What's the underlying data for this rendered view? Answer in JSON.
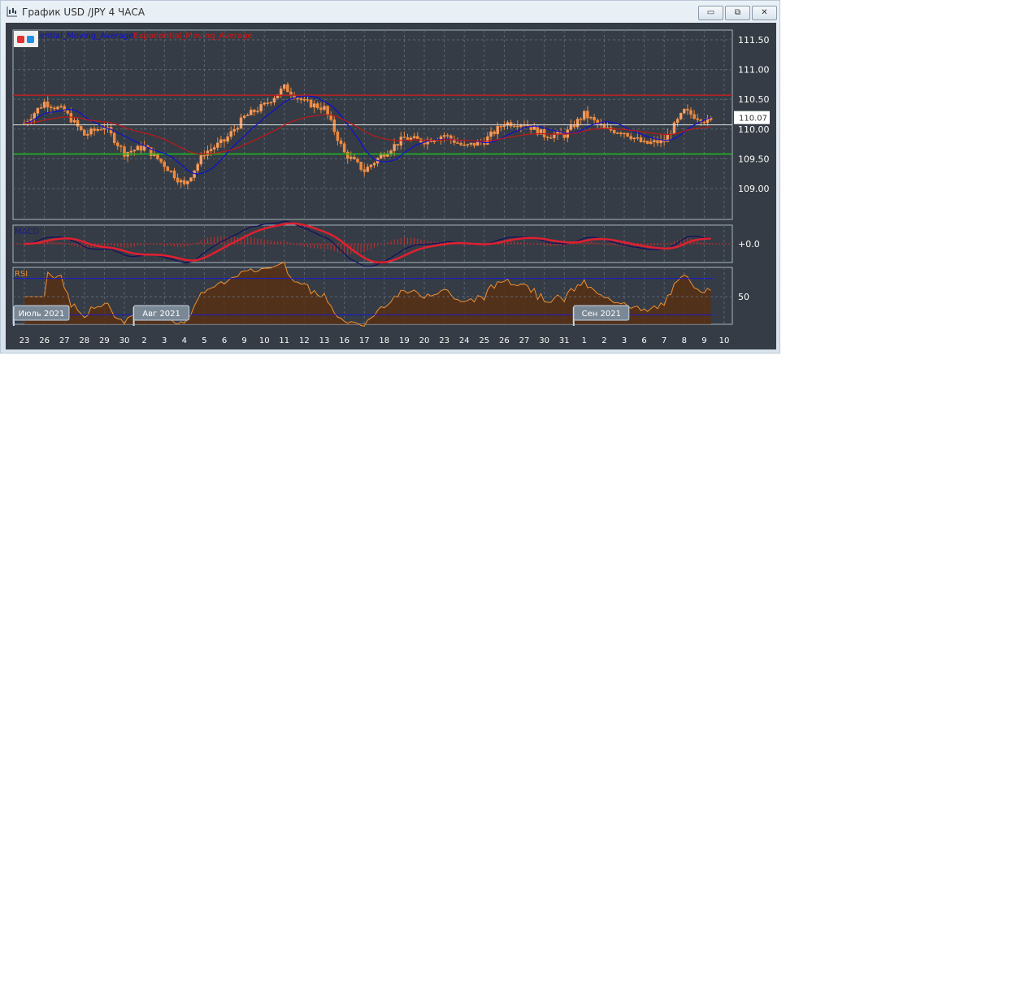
{
  "window": {
    "title": "График USD /JPY  4 ЧАСА",
    "buttons": {
      "minimize": "▭",
      "restore": "⧉",
      "close": "✕"
    }
  },
  "legend": {
    "sma_label": "ential_Moving_Average",
    "ema_label": "Exponential_Moving_Average",
    "sma_color": "#1010d0",
    "ema_color": "#e01010"
  },
  "colors": {
    "background": "#353c45",
    "candle": "#f08a3c",
    "grid": "#5c6672",
    "resistance": "#c02020",
    "support": "#20c020",
    "current_price": "#e0e0e0",
    "macd_line": "#101060",
    "macd_signal": "#e02030",
    "rsi_line": "#f09030",
    "rsi_levels": "#1a1ad0"
  },
  "chart_data": [
    {
      "type": "candlestick",
      "title": "USD/JPY 4H",
      "timeframe": "4 ЧАСА",
      "y_ticks": [
        "111.50",
        "111.00",
        "110.50",
        "110.00",
        "109.50",
        "109.00"
      ],
      "ylim": [
        108.7,
        111.8
      ],
      "x_ticks": [
        "23",
        "26",
        "27",
        "28",
        "29",
        "30",
        "2",
        "3",
        "4",
        "5",
        "6",
        "9",
        "10",
        "11",
        "12",
        "13",
        "16",
        "17",
        "18",
        "19",
        "20",
        "23",
        "24",
        "25",
        "26",
        "27",
        "30",
        "31",
        "1",
        "2",
        "3",
        "6",
        "7",
        "8",
        "9",
        "10"
      ],
      "approx_daily_close": [
        110.1,
        110.45,
        110.3,
        109.9,
        110.05,
        109.6,
        109.7,
        109.4,
        109.05,
        109.6,
        109.8,
        110.2,
        110.4,
        110.7,
        110.45,
        110.35,
        109.6,
        109.3,
        109.6,
        109.85,
        109.8,
        109.9,
        109.7,
        109.8,
        110.1,
        110.1,
        109.9,
        109.9,
        110.25,
        110.0,
        109.95,
        109.75,
        109.8,
        110.3,
        110.15,
        110.07
      ],
      "horizontal_lines": {
        "resistance": 110.57,
        "support": 109.58,
        "current": 110.07
      },
      "current_price_label": "110.07",
      "series": [
        {
          "name": "ential_Moving_Average"
        },
        {
          "name": "Exponential_Moving_Average"
        }
      ],
      "month_labels": [
        {
          "day_index": 0,
          "label": "Июль 2021"
        },
        {
          "day_index": 6,
          "label": "Авг 2021"
        },
        {
          "day_index": 28,
          "label": "Сен 2021"
        }
      ]
    },
    {
      "type": "line",
      "title": "MACD",
      "y_ticks": [
        "+0.0"
      ]
    },
    {
      "type": "area",
      "title": "RSI",
      "y_ticks": [
        "50"
      ],
      "levels": [
        70,
        30
      ]
    }
  ]
}
